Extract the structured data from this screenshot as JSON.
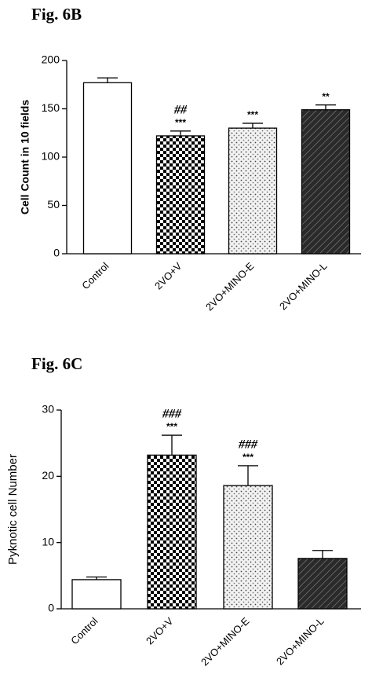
{
  "chart_data": [
    {
      "type": "bar",
      "title": "Fig. 6B",
      "y_label": "Cell Count in 10 fields",
      "categories": [
        "Control",
        "2VO+V",
        "2VO+MINO-E",
        "2VO+MINO-L"
      ],
      "values": [
        177,
        122,
        130,
        149
      ],
      "errors": [
        5,
        5,
        5,
        5
      ],
      "ylim": [
        0,
        200
      ],
      "yticks": [
        0,
        50,
        100,
        150,
        200
      ],
      "annotations": [
        {
          "category": "2VO+V",
          "text": [
            "##",
            "***"
          ]
        },
        {
          "category": "2VO+MINO-E",
          "text": [
            "***"
          ]
        },
        {
          "category": "2VO+MINO-L",
          "text": [
            "**"
          ]
        }
      ]
    },
    {
      "type": "bar",
      "title": "Fig. 6C",
      "y_label": "Pyknotic cell Number",
      "categories": [
        "Control",
        "2VO+V",
        "2VO+MINO-E",
        "2VO+MINO-L"
      ],
      "values": [
        4.4,
        23.2,
        18.6,
        7.6
      ],
      "errors": [
        0.4,
        3,
        3,
        1.2
      ],
      "ylim": [
        0,
        30
      ],
      "yticks": [
        0,
        10,
        20,
        30
      ],
      "annotations": [
        {
          "category": "2VO+V",
          "text": [
            "###",
            "***"
          ]
        },
        {
          "category": "2VO+MINO-E",
          "text": [
            "###",
            "***"
          ]
        }
      ]
    }
  ]
}
